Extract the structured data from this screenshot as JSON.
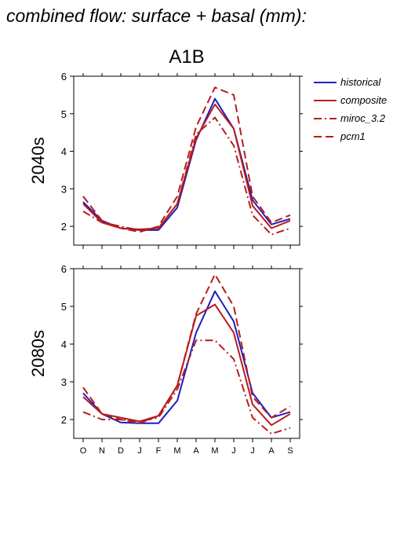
{
  "figure": {
    "title": "combined flow: surface + basal (mm):",
    "scenario": "A1B"
  },
  "legend": [
    {
      "name": "historical",
      "color": "#1f1fbf",
      "dash": "solid"
    },
    {
      "name": "composite",
      "color": "#b81c1c",
      "dash": "solid"
    },
    {
      "name": "miroc_3.2",
      "color": "#b81c1c",
      "dash": "dashdot"
    },
    {
      "name": "pcm1",
      "color": "#b81c1c",
      "dash": "dash"
    }
  ],
  "chart_data": [
    {
      "type": "line",
      "panel_label": "2040s",
      "categories": [
        "O",
        "N",
        "D",
        "J",
        "F",
        "M",
        "A",
        "M",
        "J",
        "J",
        "A",
        "S"
      ],
      "ylim": [
        1.5,
        6
      ],
      "yticks": [
        2,
        3,
        4,
        5,
        6
      ],
      "series": [
        {
          "name": "historical",
          "values": [
            2.65,
            2.15,
            1.95,
            1.9,
            1.9,
            2.5,
            4.3,
            5.4,
            4.6,
            2.7,
            2.05,
            2.2
          ]
        },
        {
          "name": "composite",
          "values": [
            2.6,
            2.1,
            1.95,
            1.92,
            1.95,
            2.6,
            4.35,
            5.25,
            4.6,
            2.55,
            1.95,
            2.15
          ]
        },
        {
          "name": "miroc_3.2",
          "values": [
            2.4,
            2.1,
            2.0,
            1.9,
            1.95,
            2.6,
            4.45,
            4.9,
            4.15,
            2.3,
            1.78,
            1.95
          ]
        },
        {
          "name": "pcm1",
          "values": [
            2.8,
            2.15,
            1.95,
            1.85,
            2.0,
            2.8,
            4.65,
            5.7,
            5.5,
            2.8,
            2.1,
            2.3
          ]
        }
      ]
    },
    {
      "type": "line",
      "panel_label": "2080s",
      "categories": [
        "O",
        "N",
        "D",
        "J",
        "F",
        "M",
        "A",
        "M",
        "J",
        "J",
        "A",
        "S"
      ],
      "ylim": [
        1.5,
        6
      ],
      "yticks": [
        2,
        3,
        4,
        5,
        6
      ],
      "series": [
        {
          "name": "historical",
          "values": [
            2.7,
            2.15,
            1.92,
            1.9,
            1.9,
            2.5,
            4.3,
            5.4,
            4.6,
            2.7,
            2.05,
            2.2
          ]
        },
        {
          "name": "composite",
          "values": [
            2.6,
            2.15,
            2.05,
            1.95,
            2.1,
            2.9,
            4.75,
            5.05,
            4.3,
            2.4,
            1.85,
            2.15
          ]
        },
        {
          "name": "miroc_3.2",
          "values": [
            2.2,
            2.0,
            2.0,
            1.95,
            2.05,
            2.8,
            4.1,
            4.1,
            3.6,
            2.05,
            1.62,
            1.78
          ]
        },
        {
          "name": "pcm1",
          "values": [
            2.85,
            2.15,
            2.0,
            1.9,
            2.1,
            2.9,
            4.8,
            5.85,
            5.0,
            2.6,
            2.05,
            2.35
          ]
        }
      ]
    }
  ]
}
